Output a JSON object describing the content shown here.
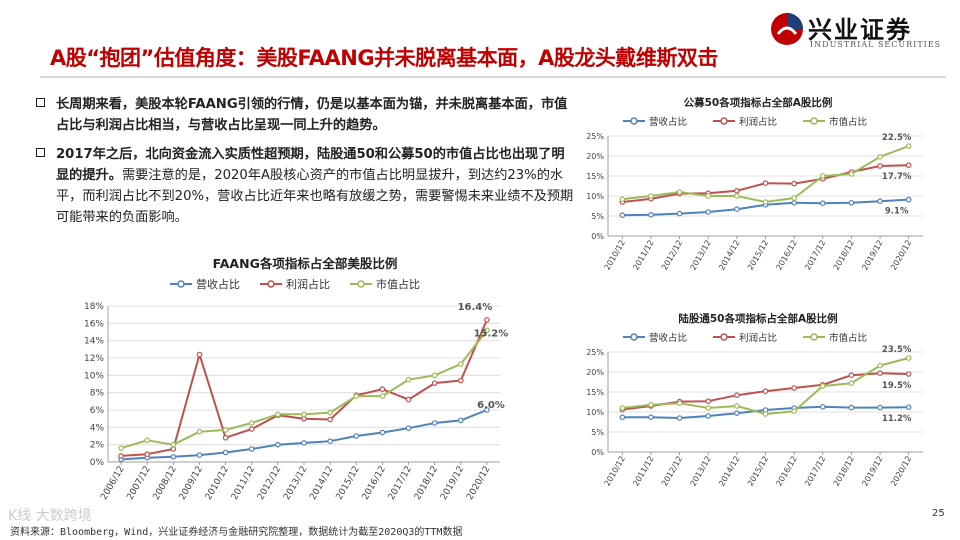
{
  "header": {
    "title": "A股“抱团”估值角度：美股FAANG并未脱离基本面，A股龙头戴维斯双击",
    "logo_name": "兴业证券",
    "logo_sub": "INDUSTRIAL SECURITIES",
    "logo_color": "#c00000"
  },
  "bullets": [
    {
      "icon": "hollow-square",
      "bold_text": "长周期来看，美股本轮FAANG引领的行情，仍是以基本面为锚，并未脱离基本面，市值占比与利润占比相当，与营收占比呈现一同上升的趋势。",
      "normal_text": ""
    },
    {
      "icon": "hollow-square",
      "bold_text": "2017年之后，北向资金流入实质性超预期，陆股通50和公募50的市值占比也出现了明显的提升。",
      "normal_text": "需要注意的是，2020年A股核心资产的市值占比明显拔升，到达约23%的水平，而利润占比不到20%，营收占比近年来也略有放缓之势，需要警惕未来业绩不及预期可能带来的负面影响。"
    }
  ],
  "footer": {
    "source": "资料来源：Bloomberg，Wind，兴业证券经济与金融研究院整理，数据统计为截至2020Q3的TTM数据",
    "page": "25",
    "watermark": "K线 大数跨境"
  },
  "colors": {
    "revenue": "#4f81bd",
    "profit": "#c0504d",
    "mktcap": "#9bbb59",
    "title_red": "#c00000"
  },
  "chart_data": [
    {
      "id": "faang",
      "type": "line",
      "title": "FAANG各项指标占全部美股比例",
      "x": [
        "2006/12",
        "2007/12",
        "2008/12",
        "2009/12",
        "2010/12",
        "2011/12",
        "2012/12",
        "2013/12",
        "2014/12",
        "2015/12",
        "2016/12",
        "2017/12",
        "2018/12",
        "2019/12",
        "2020/12"
      ],
      "ylim": [
        0,
        18
      ],
      "yticks": [
        0,
        2,
        4,
        6,
        8,
        10,
        12,
        14,
        16,
        18
      ],
      "ytick_labels": [
        "0%",
        "2%",
        "4%",
        "6%",
        "8%",
        "10%",
        "12%",
        "14%",
        "16%",
        "18%"
      ],
      "legend": "top",
      "series": [
        {
          "name": "营收占比",
          "color": "#4f81bd",
          "values": [
            0.3,
            0.5,
            0.6,
            0.8,
            1.1,
            1.5,
            2.0,
            2.2,
            2.4,
            3.0,
            3.4,
            3.9,
            4.5,
            4.8,
            6.0
          ],
          "end_label": "6.0%"
        },
        {
          "name": "利润占比",
          "color": "#c0504d",
          "values": [
            0.7,
            0.9,
            1.5,
            12.4,
            2.8,
            3.8,
            5.4,
            5.0,
            4.9,
            7.7,
            8.4,
            7.2,
            9.1,
            9.4,
            16.4
          ],
          "end_label": "16.4%"
        },
        {
          "name": "市值占比",
          "color": "#9bbb59",
          "values": [
            1.6,
            2.5,
            2.0,
            3.5,
            3.7,
            4.5,
            5.5,
            5.5,
            5.7,
            7.6,
            7.6,
            9.5,
            10.0,
            11.3,
            15.2
          ],
          "end_label": "15.2%"
        }
      ]
    },
    {
      "id": "gongmu50",
      "type": "line",
      "title": "公募50各项指标占全部A股比例",
      "x": [
        "2010/12",
        "2011/12",
        "2012/12",
        "2013/12",
        "2014/12",
        "2015/12",
        "2016/12",
        "2017/12",
        "2018/12",
        "2019/12",
        "2020/12"
      ],
      "ylim": [
        0,
        25
      ],
      "yticks": [
        0,
        5,
        10,
        15,
        20,
        25
      ],
      "ytick_labels": [
        "0%",
        "5%",
        "10%",
        "15%",
        "20%",
        "25%"
      ],
      "legend": "top",
      "series": [
        {
          "name": "营收占比",
          "color": "#4f81bd",
          "values": [
            5.2,
            5.3,
            5.6,
            6.0,
            6.7,
            7.8,
            8.3,
            8.2,
            8.3,
            8.7,
            9.1
          ],
          "end_label": "9.1%"
        },
        {
          "name": "利润占比",
          "color": "#c0504d",
          "values": [
            8.5,
            9.3,
            10.6,
            10.7,
            11.3,
            13.2,
            13.1,
            14.3,
            16.0,
            17.5,
            17.7
          ],
          "end_label": "17.7%"
        },
        {
          "name": "市值占比",
          "color": "#9bbb59",
          "values": [
            9.2,
            10.0,
            11.0,
            10.0,
            10.0,
            8.5,
            9.5,
            15.0,
            15.5,
            19.8,
            22.5
          ],
          "end_label": "22.5%"
        }
      ]
    },
    {
      "id": "lugutong50",
      "type": "line",
      "title": "陆股通50各项指标占全部A股比例",
      "x": [
        "2010/12",
        "2011/12",
        "2012/12",
        "2013/12",
        "2014/12",
        "2015/12",
        "2016/12",
        "2017/12",
        "2018/12",
        "2019/12",
        "2020/12"
      ],
      "ylim": [
        0,
        25
      ],
      "yticks": [
        0,
        5,
        10,
        15,
        20,
        25
      ],
      "ytick_labels": [
        "0%",
        "5%",
        "10%",
        "15%",
        "20%",
        "25%"
      ],
      "legend": "top",
      "series": [
        {
          "name": "营收占比",
          "color": "#4f81bd",
          "values": [
            8.7,
            8.7,
            8.5,
            9.0,
            9.7,
            10.5,
            11.0,
            11.3,
            11.1,
            11.1,
            11.2
          ],
          "end_label": "11.2%"
        },
        {
          "name": "利润占比",
          "color": "#c0504d",
          "values": [
            10.6,
            11.5,
            12.6,
            12.7,
            14.2,
            15.2,
            16.0,
            16.8,
            19.2,
            19.7,
            19.5
          ],
          "end_label": "19.5%"
        },
        {
          "name": "市值占比",
          "color": "#9bbb59",
          "values": [
            11.0,
            11.8,
            12.2,
            11.0,
            11.5,
            9.5,
            10.2,
            16.5,
            17.2,
            21.6,
            23.5
          ],
          "end_label": "23.5%"
        }
      ]
    }
  ]
}
